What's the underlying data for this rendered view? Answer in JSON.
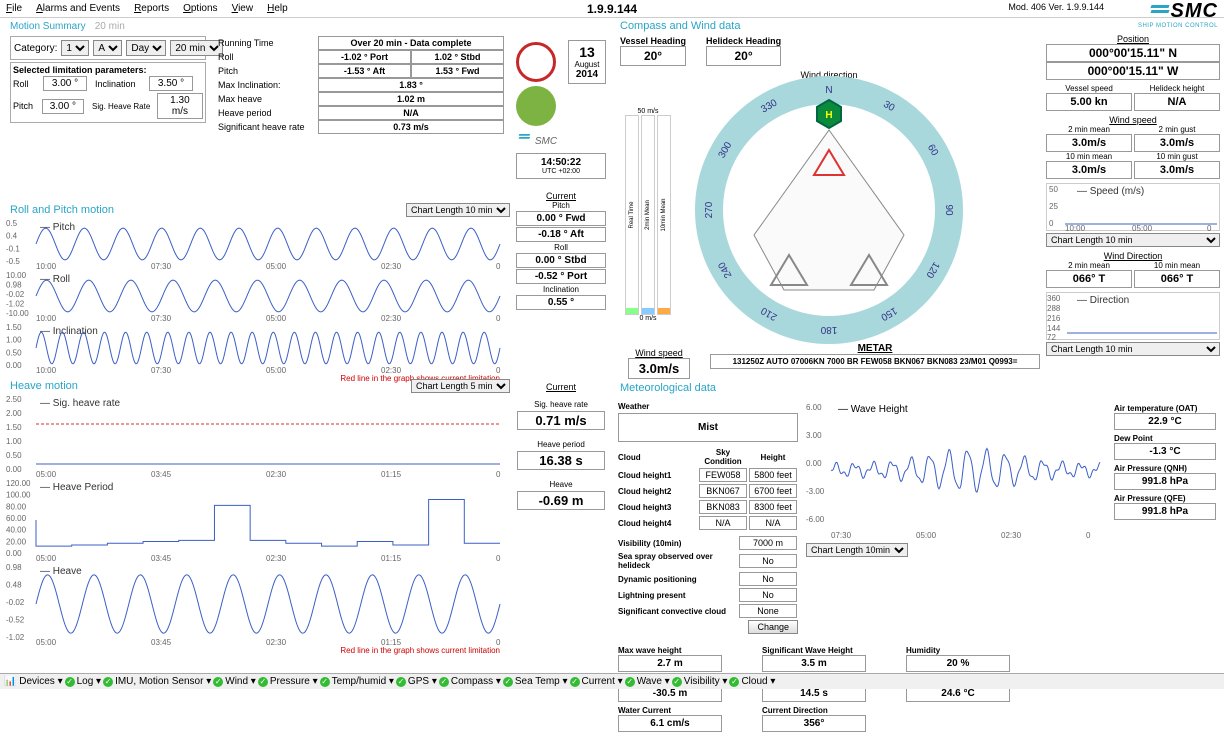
{
  "app": {
    "version": "1.9.9.144",
    "mod_ver": "Mod. 406  Ver. 1.9.9.144",
    "logo": "SMC",
    "logo_sub": "SHIP MOTION CONTROL"
  },
  "menu": [
    "File",
    "Alarms and Events",
    "Reports",
    "Options",
    "View",
    "Help"
  ],
  "motion_summary": {
    "title": "Motion Summary",
    "subtitle": "20 min",
    "category_label": "Category:",
    "selectors": [
      "1",
      "A",
      "Day",
      "20 min"
    ],
    "params_title": "Selected limitation parameters:",
    "params": [
      {
        "lbl": "Roll",
        "v": "3.00 °",
        "lbl2": "Inclination",
        "v2": "3.50 °"
      },
      {
        "lbl": "Pitch",
        "v": "3.00 °",
        "lbl2": "Sig. Heave Rate",
        "v2": "1.30 m/s"
      }
    ],
    "stats": [
      {
        "lbl": "Running Time",
        "v": "Over 20 min - Data complete",
        "span": 2
      },
      {
        "lbl": "Roll",
        "v": "-1.02 ° Port",
        "v2": "1.02 ° Stbd"
      },
      {
        "lbl": "Pitch",
        "v": "-1.53 ° Aft",
        "v2": "1.53 ° Fwd"
      },
      {
        "lbl": "Max Inclination:",
        "v": "1.83 °",
        "span": 2
      },
      {
        "lbl": "Max heave",
        "v": "1.02 m",
        "span": 2
      },
      {
        "lbl": "Heave period",
        "v": "N/A",
        "span": 2
      },
      {
        "lbl": "Significant heave rate",
        "v": "0.73 m/s",
        "span": 2
      }
    ]
  },
  "roll_pitch": {
    "title": "Roll and Pitch motion",
    "chart_len": "Chart Length 10 min",
    "note": "Red line in the graph shows current limitation",
    "series": [
      {
        "name": "Pitch",
        "color": "#3b5fc7",
        "amp": 0.5,
        "freq": 24,
        "ylabels": [
          "0.5",
          "0.4",
          "-0.1",
          "-0.5"
        ],
        "xlabels": [
          "10:00",
          "07:30",
          "05:00",
          "02:30",
          "0"
        ]
      },
      {
        "name": "Roll",
        "color": "#3b5fc7",
        "amp": 0.98,
        "freq": 22,
        "ylabels": [
          "10.00",
          "0.98",
          "-0.02",
          "-1.02",
          "-10.00"
        ],
        "xlabels": [
          "10:00",
          "07:30",
          "05:00",
          "02:30",
          "0"
        ]
      },
      {
        "name": "Inclination",
        "color": "#3b5fc7",
        "amp": 1.0,
        "freq": 44,
        "ylabels": [
          "1.50",
          "1.00",
          "0.50",
          "0.00"
        ],
        "xlabels": [
          "10:00",
          "07:30",
          "05:00",
          "02:30",
          "0"
        ]
      }
    ]
  },
  "heave": {
    "title": "Heave motion",
    "chart_len": "Chart Length 5 min",
    "note": "Red line in the graph shows current limitation",
    "series": [
      {
        "name": "Sig. heave rate",
        "color": "#3b5fc7",
        "type": "flat_dashed",
        "dashed_y": 1.3,
        "ylabels": [
          "2.50",
          "2.00",
          "1.50",
          "1.00",
          "0.50",
          "0.00"
        ],
        "xlabels": [
          "05:00",
          "03:45",
          "02:30",
          "01:15",
          "0"
        ]
      },
      {
        "name": "Heave Period",
        "color": "#3b5fc7",
        "type": "step",
        "ylabels": [
          "120.00",
          "100.00",
          "80.00",
          "60.00",
          "40.00",
          "20.00",
          "0.00"
        ],
        "xlabels": [
          "05:00",
          "03:45",
          "02:30",
          "01:15",
          "0"
        ]
      },
      {
        "name": "Heave",
        "color": "#3b5fc7",
        "type": "sine",
        "amp": 0.9,
        "freq": 20,
        "ylabels": [
          "0.98",
          "0.48",
          "-0.02",
          "-0.52",
          "-1.02"
        ],
        "xlabels": [
          "05:00",
          "03:45",
          "02:30",
          "01:15",
          "0"
        ]
      }
    ]
  },
  "center": {
    "indicator1_color": "#c62828",
    "indicator1_fill": "none",
    "indicator2_color": "#7cb342",
    "indicator2_fill": "#7cb342",
    "logo": "SMC",
    "date": {
      "day": "13",
      "month": "August",
      "year": "2014"
    },
    "time": "14:50:22",
    "tz": "UTC +02:00",
    "current": [
      {
        "hdr": "Current"
      },
      {
        "lbl": "Pitch",
        "v1": "0.00 ° Fwd",
        "v2": "-0.18 ° Aft"
      },
      {
        "lbl": "Roll",
        "v1": "0.00 ° Stbd",
        "v2": "-0.52 ° Port"
      },
      {
        "lbl": "Inclination",
        "v1": "0.55 °"
      }
    ],
    "heave_curr": [
      {
        "hdr": "Current"
      },
      {
        "lbl": "Sig. heave rate",
        "v": "0.71 m/s"
      },
      {
        "lbl": "Heave period",
        "v": "16.38 s"
      },
      {
        "lbl": "Heave",
        "v": "-0.69 m"
      }
    ]
  },
  "compass": {
    "title": "Compass and Wind data",
    "vessel_heading": {
      "lbl": "Vessel Heading",
      "v": "20°"
    },
    "helideck_heading": {
      "lbl": "Helideck Heading",
      "v": "20°"
    },
    "wind_dir_lbl": "Wind direction",
    "wind_dir": "66° T",
    "ring_color": "#a8d8dc",
    "ring_labels": [
      "N",
      "30",
      "60",
      "90",
      "120",
      "150",
      "180",
      "210",
      "240",
      "270",
      "300",
      "330"
    ],
    "helipad_color": "#0a8a3a",
    "bars": {
      "top": "50 m/s",
      "bottom": "0 m/s",
      "cols": [
        {
          "lbl": "Real Time",
          "color": "#8f8"
        },
        {
          "lbl": "2min Mean",
          "color": "#8cf"
        },
        {
          "lbl": "10min Mean",
          "color": "#fa4"
        }
      ]
    },
    "wind_speed": {
      "lbl": "Wind speed",
      "v": "3.0m/s"
    },
    "metar": {
      "lbl": "METAR",
      "v": "131250Z AUTO 07006KN 7000 BR FEW058 BKN067 BKN083 23/M01 Q0993="
    }
  },
  "right": {
    "position": {
      "lbl": "Position",
      "lat": "000°00'15.11\" N",
      "lon": "000°00'15.11\" W"
    },
    "vessel_speed": {
      "lbl": "Vessel speed",
      "v": "5.00 kn"
    },
    "helideck_height": {
      "lbl": "Helideck height",
      "v": "N/A"
    },
    "wind_speed": {
      "lbl": "Wind speed",
      "r1": [
        {
          "lbl": "2 min mean",
          "v": "3.0m/s"
        },
        {
          "lbl": "2 min gust",
          "v": "3.0m/s"
        }
      ],
      "r2": [
        {
          "lbl": "10 min mean",
          "v": "3.0m/s"
        },
        {
          "lbl": "10 min gust",
          "v": "3.0m/s"
        }
      ]
    },
    "speed_chart": {
      "legend": "Speed (m/s)",
      "color": "#3b5fc7",
      "ylabels": [
        "50",
        "25",
        "0"
      ],
      "xlabels": [
        "10:00",
        "05:00",
        "0"
      ],
      "chart_len": "Chart Length 10 min"
    },
    "wind_dir": {
      "lbl": "Wind Direction",
      "r": [
        {
          "lbl": "2 min mean",
          "v": "066° T"
        },
        {
          "lbl": "10 min mean",
          "v": "066° T"
        }
      ]
    },
    "dir_chart": {
      "legend": "Direction",
      "color": "#3b5fc7",
      "ylabels": [
        "360",
        "288",
        "216",
        "144",
        "72"
      ],
      "xlabels": [
        "10:00",
        "05:00",
        "0"
      ],
      "chart_len": "Chart Length 10 min"
    }
  },
  "meteo": {
    "title": "Meteorological data",
    "weather": {
      "lbl": "Weather",
      "v": "Mist"
    },
    "cloud_hdr": [
      "Cloud",
      "Sky Condition",
      "Height"
    ],
    "clouds": [
      {
        "lbl": "Cloud height1",
        "c": "FEW058",
        "h": "5800 feet"
      },
      {
        "lbl": "Cloud height2",
        "c": "BKN067",
        "h": "6700 feet"
      },
      {
        "lbl": "Cloud height3",
        "c": "BKN083",
        "h": "8300 feet"
      },
      {
        "lbl": "Cloud height4",
        "c": "N/A",
        "h": "N/A"
      }
    ],
    "rows": [
      {
        "lbl": "Visibility (10min)",
        "v": "7000 m"
      },
      {
        "lbl": "Sea spray observed over helideck",
        "v": "No"
      },
      {
        "lbl": "Dynamic positioning",
        "v": "No"
      },
      {
        "lbl": "Lightning present",
        "v": "No"
      },
      {
        "lbl": "Significant convective cloud",
        "v": "None"
      }
    ],
    "change_btn": "Change",
    "wave_chart": {
      "legend": "Wave Height",
      "color": "#3b5fc7",
      "ylabels": [
        "6.00",
        "3.00",
        "0.00",
        "-3.00",
        "-6.00"
      ],
      "xlabels": [
        "07:30",
        "05:00",
        "02:30",
        "0"
      ],
      "chart_len": "Chart Length 10min"
    },
    "air": [
      {
        "lbl": "Air temperature (OAT)",
        "v": "22.9 °C"
      },
      {
        "lbl": "Dew Point",
        "v": "-1.3 °C"
      },
      {
        "lbl": "Air Pressure (QNH)",
        "v": "991.8 hPa"
      },
      {
        "lbl": "Air Pressure (QFE)",
        "v": "991.8 hPa"
      }
    ],
    "bottom": [
      [
        {
          "lbl": "Max wave height",
          "v": "2.7 m"
        },
        {
          "lbl": "Draft",
          "v": "-30.5 m"
        },
        {
          "lbl": "Water Current",
          "v": "6.1 cm/s"
        }
      ],
      [
        {
          "lbl": "Significant Wave Height",
          "v": "3.5 m"
        },
        {
          "lbl": "Wave Period",
          "v": "14.5 s"
        },
        {
          "lbl": "Current Direction",
          "v": "356°"
        }
      ],
      [
        {
          "lbl": "Humidity",
          "v": "20 %"
        },
        {
          "lbl": "Sea temperature",
          "v": "24.6 °C"
        }
      ]
    ]
  },
  "statusbar": [
    "Devices",
    "Log",
    "IMU, Motion Sensor",
    "Wind",
    "Pressure",
    "Temp/humid",
    "GPS",
    "Compass",
    "Sea Temp",
    "Current",
    "Wave",
    "Visibility",
    "Cloud"
  ]
}
